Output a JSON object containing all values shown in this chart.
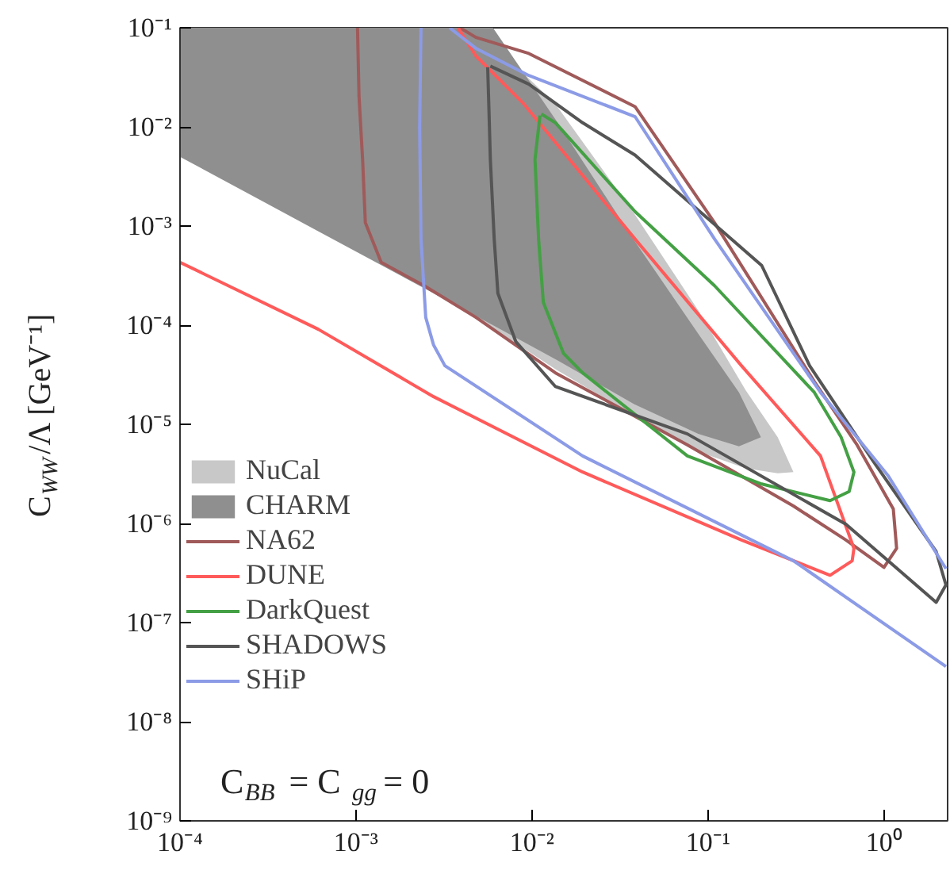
{
  "chart_data": {
    "type": "line",
    "ylabel": "C$_{WW}$/Λ [GeV⁻¹]",
    "log": "xy",
    "grid": false,
    "legend": "bottom left",
    "xlim": [
      0.0001,
      2.3
    ],
    "ylim": [
      1e-09,
      0.1
    ],
    "xticks": [
      {
        "value": 0.0001,
        "label": "10⁻⁴"
      },
      {
        "value": 0.001,
        "label": "10⁻³"
      },
      {
        "value": 0.01,
        "label": "10⁻²"
      },
      {
        "value": 0.1,
        "label": "10⁻¹"
      },
      {
        "value": 1,
        "label": "10⁰"
      }
    ],
    "yticks": [
      {
        "value": 1e-09,
        "label": "10⁻⁹"
      },
      {
        "value": 1e-08,
        "label": "10⁻⁸"
      },
      {
        "value": 1e-07,
        "label": "10⁻⁷"
      },
      {
        "value": 1e-06,
        "label": "10⁻⁶"
      },
      {
        "value": 1e-05,
        "label": "10⁻⁵"
      },
      {
        "value": 0.0001,
        "label": "10⁻⁴"
      },
      {
        "value": 0.001,
        "label": "10⁻³"
      },
      {
        "value": 0.01,
        "label": "10⁻²"
      },
      {
        "value": 0.1,
        "label": "10⁻¹"
      }
    ],
    "annotations": [
      "C$_{BB}$ = C$_{gg}$ = 0"
    ],
    "series": [
      {
        "name": "NuCal",
        "type": "area",
        "color": "#c8c8c8",
        "x": [
          0.0048,
          0.0136,
          0.0385,
          0.0883,
          0.164,
          0.249,
          0.306,
          0.249,
          0.164,
          0.0883,
          0.0385,
          0.0136,
          0.0048
        ],
        "values": [
          0.1,
          0.017,
          0.0013,
          0.00014,
          2.2e-05,
          7.4e-06,
          3.3e-06,
          3.2e-06,
          3.6e-06,
          5.3e-06,
          1.2e-05,
          3.6e-05,
          0.00012
        ]
      },
      {
        "name": "CHARM",
        "type": "area",
        "color": "#8f8f8f",
        "x": [
          0.0001,
          0.0006,
          0.006,
          0.014,
          0.038,
          0.088,
          0.15,
          0.2,
          0.15,
          0.088,
          0.038,
          0.014,
          0.006,
          0.0006,
          0.0001
        ],
        "values": [
          0.1,
          0.1,
          0.1,
          0.011,
          0.00072,
          8.2e-05,
          2.1e-05,
          7.4e-06,
          6e-06,
          8e-06,
          1.6e-05,
          4.4e-05,
          0.0001,
          0.0009,
          0.005
        ]
      },
      {
        "name": "NA62",
        "color": "#a05a5a",
        "x": [
          0.00102,
          0.00104,
          0.00109,
          0.00113,
          0.00139,
          0.00244,
          0.0048,
          0.0136,
          0.0764,
          0.306,
          0.608,
          1.0,
          1.18,
          1.13,
          0.703,
          0.402,
          0.109,
          0.0385,
          0.0096,
          0.0048,
          0.0039
        ],
        "values": [
          0.1,
          0.0205,
          0.0047,
          0.00108,
          0.00043,
          0.00025,
          0.00012,
          3.3e-05,
          6.2e-06,
          1.5e-06,
          6.8e-07,
          3.6e-07,
          5.6e-07,
          1.4e-06,
          6.2e-06,
          2.7e-05,
          0.00108,
          0.016,
          0.055,
          0.08,
          0.1
        ]
      },
      {
        "name": "DUNE",
        "color": "#ff5a5a",
        "x": [
          0.0001,
          0.00061,
          0.00276,
          0.0194,
          0.155,
          0.494,
          0.66,
          0.675,
          0.436,
          0.155,
          0.0385,
          0.009,
          0.0048,
          0.0038
        ],
        "values": [
          0.00043,
          9.1e-05,
          1.9e-05,
          3.3e-06,
          6.8e-07,
          3e-07,
          4.2e-07,
          5.6e-07,
          4.8e-06,
          3.9e-05,
          0.00074,
          0.017,
          0.052,
          0.1
        ]
      },
      {
        "name": "DarkQuest",
        "color": "#44a044",
        "x": [
          0.0111,
          0.0104,
          0.0109,
          0.0116,
          0.0151,
          0.0194,
          0.0764,
          0.202,
          0.494,
          0.634,
          0.675,
          0.571,
          0.402,
          0.109,
          0.0385,
          0.0136,
          0.0113
        ],
        "values": [
          0.013,
          0.0047,
          0.00074,
          0.00017,
          5.2e-05,
          3.3e-05,
          4.8e-06,
          2.5e-06,
          1.7e-06,
          2.1e-06,
          3.3e-06,
          7.4e-06,
          2.1e-05,
          0.00025,
          0.0014,
          0.011,
          0.0135
        ]
      },
      {
        "name": "SHADOWS",
        "color": "#555555",
        "x": [
          0.0056,
          0.0057,
          0.0058,
          0.0061,
          0.0064,
          0.0081,
          0.0136,
          0.0764,
          0.608,
          1.98,
          2.25,
          1.98,
          0.865,
          0.378,
          0.202,
          0.0385,
          0.0194,
          0.0096,
          0.0058
        ],
        "values": [
          0.04,
          0.014,
          0.0047,
          0.00074,
          0.00021,
          6.8e-05,
          2.4e-05,
          8e-06,
          9.8e-07,
          1.6e-07,
          2.4e-07,
          5.2e-07,
          4.3e-06,
          3.9e-05,
          0.0004,
          0.0052,
          0.011,
          0.027,
          0.041
        ]
      },
      {
        "name": "SHiP",
        "color": "#8c9be6",
        "x": [
          2.25,
          1.06,
          0.436,
          0.109,
          0.0385,
          0.0096,
          0.0048,
          0.0034,
          null,
          0.00234,
          0.0023,
          0.00234,
          0.00249,
          0.00276,
          0.0032,
          0.0194,
          0.306,
          2.25
        ],
        "values": [
          3.5e-07,
          3e-06,
          2.1e-05,
          0.00074,
          0.0127,
          0.033,
          0.062,
          0.1,
          null,
          0.1,
          0.0098,
          0.00074,
          0.00012,
          6.3e-05,
          3.9e-05,
          4.8e-06,
          4.2e-07,
          3.6e-08
        ]
      }
    ]
  }
}
